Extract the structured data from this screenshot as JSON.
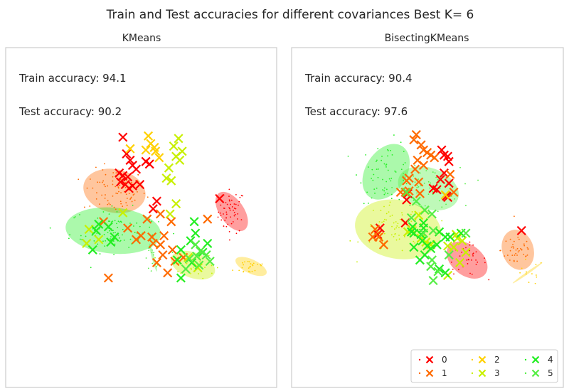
{
  "figure": {
    "suptitle": "Train and Test accuracies for different covariances Best K= 6"
  },
  "chart_data": [
    {
      "type": "scatter",
      "title": "KMeans",
      "annotations": [
        "Train accuracy: 94.1",
        "Test accuracy: 90.2"
      ],
      "grid": false,
      "legend_position": "",
      "clusters": [
        {
          "id": "0",
          "color": "#ff0000",
          "ellipse": {
            "cx": 7.4,
            "cy": -1.8,
            "w": 2.0,
            "h": 3.5,
            "angle": 35
          },
          "train": {
            "n": 55,
            "sx": 0.55,
            "sy": 0.85
          },
          "test": [
            [
              -1.6,
              4.0
            ],
            [
              -1.3,
              2.7
            ],
            [
              -1.0,
              2.2
            ],
            [
              -0.8,
              1.8
            ],
            [
              -0.5,
              1.5
            ],
            [
              -1.9,
              1.2
            ],
            [
              -1.6,
              1.0
            ],
            [
              -1.2,
              0.9
            ],
            [
              -1.8,
              0.5
            ],
            [
              -1.4,
              0.3
            ],
            [
              -0.8,
              0.2
            ],
            [
              -1.1,
              0.0
            ],
            [
              0.3,
              2.1
            ],
            [
              0.6,
              1.9
            ],
            [
              -0.2,
              0.3
            ],
            [
              6.4,
              -0.8
            ],
            [
              1.2,
              -1.0
            ],
            [
              0.9,
              -1.6
            ]
          ]
        },
        {
          "id": "1",
          "color": "#ff6a00",
          "ellipse": {
            "cx": -2.3,
            "cy": -0.2,
            "w": 5.2,
            "h": 3.4,
            "angle": -12
          },
          "train": {
            "n": 80,
            "sx": 1.3,
            "sy": 0.85
          },
          "test": [
            [
              -3.2,
              -2.6
            ],
            [
              -1.2,
              -3.1
            ],
            [
              0.4,
              -2.4
            ],
            [
              1.5,
              -2.0
            ],
            [
              2.4,
              -2.6
            ],
            [
              5.4,
              -2.4
            ],
            [
              -0.5,
              -4.0
            ],
            [
              0.9,
              -4.3
            ],
            [
              -0.1,
              -3.7
            ],
            [
              1.8,
              -3.7
            ],
            [
              0.8,
              -3.8
            ],
            [
              1.5,
              -4.4
            ],
            [
              2.7,
              -5.7
            ],
            [
              3.4,
              -5.4
            ],
            [
              -2.8,
              -7.0
            ],
            [
              1.7,
              -5.2
            ],
            [
              2.1,
              -6.6
            ],
            [
              1.2,
              -5.8
            ],
            [
              2.5,
              -4.8
            ]
          ]
        },
        {
          "id": "2",
          "color": "#ffd000",
          "ellipse": {
            "cx": 9.0,
            "cy": -6.1,
            "w": 2.8,
            "h": 1.1,
            "angle": -25
          },
          "train": {
            "n": 25,
            "sx": 0.7,
            "sy": 0.35
          },
          "test": [
            [
              0.5,
              4.1
            ],
            [
              0.7,
              3.5
            ],
            [
              1.0,
              3.2
            ],
            [
              1.1,
              2.9
            ],
            [
              0.3,
              3.0
            ],
            [
              -1.0,
              3.1
            ],
            [
              1.4,
              2.4
            ]
          ]
        },
        {
          "id": "3",
          "color": "#c8f000",
          "ellipse": {
            "cx": 4.2,
            "cy": -6.0,
            "w": 3.8,
            "h": 2.0,
            "angle": -20
          },
          "train": {
            "n": 35,
            "sx": 0.9,
            "sy": 0.5
          },
          "test": [
            [
              3.0,
              3.9
            ],
            [
              2.8,
              2.5
            ],
            [
              2.6,
              3.3
            ],
            [
              3.1,
              2.2
            ],
            [
              3.3,
              2.9
            ],
            [
              2.2,
              1.6
            ],
            [
              2.0,
              0.8
            ],
            [
              2.4,
              0.6
            ],
            [
              2.8,
              -1.2
            ],
            [
              2.3,
              -2.0
            ],
            [
              -4.4,
              -3.2
            ],
            [
              -4.6,
              -4.3
            ],
            [
              -3.6,
              -4.0
            ],
            [
              3.8,
              -5.4
            ],
            [
              4.6,
              -6.2
            ],
            [
              -1.6,
              -1.9
            ]
          ]
        },
        {
          "id": "4",
          "color": "#22ee22",
          "ellipse": {
            "cx": -2.4,
            "cy": -3.3,
            "w": 7.9,
            "h": 3.6,
            "angle": -5
          },
          "train": {
            "n": 90,
            "sx": 1.8,
            "sy": 0.85
          },
          "test": [
            [
              -3.8,
              -3.3
            ],
            [
              -4.1,
              -4.8
            ],
            [
              -3.6,
              -2.8
            ],
            [
              -2.8,
              -3.0
            ],
            [
              -2.3,
              -3.8
            ],
            [
              -2.6,
              -4.2
            ],
            [
              4.3,
              -2.6
            ],
            [
              4.4,
              -3.5
            ],
            [
              4.0,
              -4.1
            ],
            [
              3.2,
              -4.8
            ],
            [
              2.9,
              -5.6
            ],
            [
              5.0,
              -5.0
            ],
            [
              5.4,
              -4.3
            ],
            [
              4.1,
              -5.8
            ],
            [
              3.2,
              -7.0
            ]
          ]
        },
        {
          "id": "5",
          "color": "#55ee44",
          "ellipse": {
            "cx": 0.9,
            "cy": -5.4,
            "w": 2.4,
            "h": 0.22,
            "angle": -75
          },
          "train": {
            "n": 15,
            "sx": 0.4,
            "sy": 0.4
          },
          "test": [
            [
              4.4,
              -4.4
            ],
            [
              4.8,
              -4.9
            ],
            [
              5.3,
              -5.2
            ],
            [
              4.5,
              -5.3
            ],
            [
              5.6,
              -5.7
            ],
            [
              3.9,
              -5.5
            ],
            [
              4.7,
              -6.0
            ],
            [
              3.6,
              -6.3
            ]
          ]
        }
      ]
    },
    {
      "type": "scatter",
      "title": "BisectingKMeans",
      "annotations": [
        "Train accuracy: 90.4",
        "Test accuracy: 97.6"
      ],
      "grid": false,
      "legend_position": "lower right",
      "legend": [
        {
          "label": "0",
          "color": "#ff0000"
        },
        {
          "label": "1",
          "color": "#ff6a00"
        },
        {
          "label": "2",
          "color": "#ffd000"
        },
        {
          "label": "3",
          "color": "#c8f000"
        },
        {
          "label": "4",
          "color": "#22ee22"
        },
        {
          "label": "5",
          "color": "#55ee44"
        }
      ],
      "clusters": [
        {
          "id": "0",
          "color": "#ff0000",
          "ellipse": {
            "cx": 4.1,
            "cy": -5.6,
            "w": 3.8,
            "h": 2.4,
            "angle": -38
          },
          "train": {
            "n": 35,
            "sx": 0.8,
            "sy": 0.6
          },
          "test": [
            [
              2.0,
              3.0
            ],
            [
              2.2,
              2.6
            ],
            [
              2.5,
              2.5
            ],
            [
              2.6,
              2.1
            ],
            [
              2.2,
              1.2
            ],
            [
              1.9,
              0.7
            ],
            [
              1.3,
              0.0
            ],
            [
              1.6,
              -0.1
            ],
            [
              2.6,
              0.4
            ],
            [
              2.4,
              -0.6
            ],
            [
              2.5,
              -0.7
            ],
            [
              -0.9,
              -0.9
            ],
            [
              -1.0,
              -2.7
            ],
            [
              -3.1,
              -3.1
            ],
            [
              -3.3,
              -3.6
            ],
            [
              8.6,
              -3.3
            ],
            [
              -0.8,
              -0.4
            ]
          ]
        },
        {
          "id": "1",
          "color": "#ff6a00",
          "ellipse": {
            "cx": 8.3,
            "cy": -4.8,
            "w": 2.6,
            "h": 3.2,
            "angle": 18
          },
          "train": {
            "n": 40,
            "sx": 0.7,
            "sy": 0.8
          },
          "test": [
            [
              -0.1,
              4.2
            ],
            [
              -0.3,
              3.8
            ],
            [
              0.3,
              3.4
            ],
            [
              0.5,
              3.0
            ],
            [
              0.8,
              2.8
            ],
            [
              1.1,
              2.6
            ],
            [
              0.0,
              2.2
            ],
            [
              0.5,
              1.8
            ],
            [
              1.4,
              2.4
            ],
            [
              -0.2,
              1.5
            ],
            [
              -0.7,
              0.8
            ],
            [
              -0.9,
              0.6
            ],
            [
              -1.4,
              -0.3
            ],
            [
              -1.0,
              -0.3
            ],
            [
              0.2,
              -0.4
            ],
            [
              -0.7,
              -0.2
            ],
            [
              0.1,
              0.5
            ],
            [
              -3.5,
              -3.2
            ],
            [
              -3.7,
              -3.8
            ],
            [
              -3.2,
              -3.8
            ],
            [
              -2.8,
              -4.4
            ],
            [
              2.7,
              1.1
            ],
            [
              3.0,
              -0.3
            ]
          ]
        },
        {
          "id": "2",
          "color": "#ffd000",
          "ellipse": {
            "cx": 9.1,
            "cy": -6.6,
            "w": 3.0,
            "h": 0.18,
            "angle": 35
          },
          "train": {
            "n": 12,
            "sx": 0.7,
            "sy": 0.5
          },
          "test": [
            [
              2.3,
              -0.5
            ]
          ]
        },
        {
          "id": "3",
          "color": "#c8f000",
          "ellipse": {
            "cx": -1.6,
            "cy": -3.2,
            "w": 7.2,
            "h": 4.6,
            "angle": -10
          },
          "train": {
            "n": 70,
            "sx": 1.5,
            "sy": 1.0
          },
          "test": [
            [
              0.1,
              -2.1
            ],
            [
              -0.8,
              -3.4
            ],
            [
              -0.5,
              -3.2
            ],
            [
              0.3,
              -3.9
            ],
            [
              0.7,
              -4.2
            ],
            [
              1.1,
              -4.4
            ],
            [
              2.5,
              -4.5
            ],
            [
              3.0,
              -4.6
            ],
            [
              3.3,
              -3.9
            ],
            [
              3.7,
              -4.1
            ],
            [
              3.5,
              -5.8
            ],
            [
              2.5,
              -6.8
            ],
            [
              3.2,
              -3.6
            ],
            [
              4.0,
              -5.0
            ]
          ]
        },
        {
          "id": "4",
          "color": "#22ee22",
          "ellipse": {
            "cx": -2.6,
            "cy": 1.3,
            "w": 5.0,
            "h": 3.2,
            "angle": 58
          },
          "train": {
            "n": 60,
            "sx": 1.1,
            "sy": 1.2
          },
          "test": [
            [
              -0.4,
              -3.0
            ],
            [
              -0.5,
              -3.4
            ],
            [
              -0.3,
              -3.5
            ],
            [
              0.5,
              -2.7
            ],
            [
              0.5,
              -3.1
            ],
            [
              0.3,
              -3.6
            ],
            [
              0.4,
              -4.1
            ],
            [
              0.8,
              -4.5
            ],
            [
              1.1,
              -4.7
            ],
            [
              2.3,
              -3.8
            ],
            [
              2.7,
              -3.8
            ],
            [
              1.8,
              -3.4
            ],
            [
              1.6,
              -4.4
            ],
            [
              -0.3,
              -4.6
            ],
            [
              0.6,
              -5.2
            ],
            [
              0.2,
              -5.6
            ],
            [
              1.8,
              -6.3
            ],
            [
              2.3,
              -6.6
            ],
            [
              3.6,
              -3.5
            ]
          ]
        },
        {
          "id": "5",
          "color": "#55ee44",
          "ellipse": {
            "cx": 0.9,
            "cy": 0.0,
            "w": 5.2,
            "h": 3.2,
            "angle": -20
          },
          "train": {
            "n": 55,
            "sx": 1.3,
            "sy": 0.8
          },
          "test": [
            [
              -0.9,
              -0.3
            ],
            [
              -0.1,
              -1.0
            ],
            [
              0.6,
              -1.7
            ],
            [
              -0.5,
              -2.3
            ],
            [
              1.2,
              -2.0
            ],
            [
              1.3,
              -3.3
            ],
            [
              1.2,
              -5.6
            ],
            [
              1.1,
              -6.1
            ],
            [
              1.7,
              -6.5
            ],
            [
              2.6,
              -5.2
            ],
            [
              1.3,
              -7.2
            ],
            [
              0.5,
              -3.5
            ],
            [
              4.0,
              -3.5
            ]
          ]
        }
      ]
    }
  ]
}
